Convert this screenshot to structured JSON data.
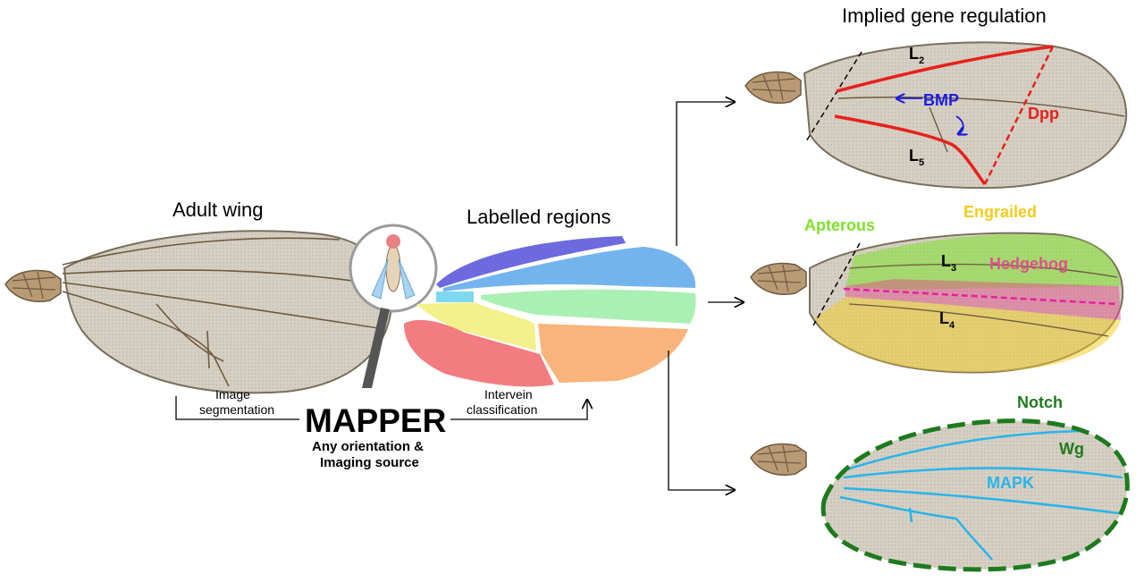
{
  "titles": {
    "adult_wing": "Adult wing",
    "labelled_regions": "Labelled regions",
    "implied_regulation": "Implied gene regulation"
  },
  "mapper": {
    "name": "MAPPER",
    "subtitle_line1": "Any orientation &",
    "subtitle_line2": "Imaging source"
  },
  "steps": {
    "segmentation_line1": "Image",
    "segmentation_line2": "segmentation",
    "classification_line1": "Intervein",
    "classification_line2": "classification"
  },
  "panel_top": {
    "vein_top": "L",
    "vein_top_sub": "2",
    "vein_bottom": "L",
    "vein_bottom_sub": "5",
    "bmp": "BMP",
    "dpp": "Dpp"
  },
  "panel_mid": {
    "apterous": "Apterous",
    "engrailed": "Engrailed",
    "hedgehog": "Hedgehog",
    "vein_a": "L",
    "vein_a_sub": "3",
    "vein_b": "L",
    "vein_b_sub": "4"
  },
  "panel_bottom": {
    "notch": "Notch",
    "wg": "Wg",
    "mapk": "MAPK"
  },
  "colors": {
    "dpp_red": "#e8201c",
    "bmp_blue": "#1c1ce0",
    "apterous_green": "#7fe02a",
    "engrailed_yellow": "#f2cc1e",
    "hedgehog_pink": "#e0508c",
    "notch_green": "#1e7a1e",
    "mapk_cyan": "#28b4ec",
    "region_purple": "#6d6ae0",
    "region_blue": "#74b4ee",
    "region_cyan": "#7ed8f0",
    "region_mint": "#aaf0b4",
    "region_yellow": "#f4f08c",
    "region_red": "#f27c80",
    "region_orange": "#f8b47a"
  }
}
